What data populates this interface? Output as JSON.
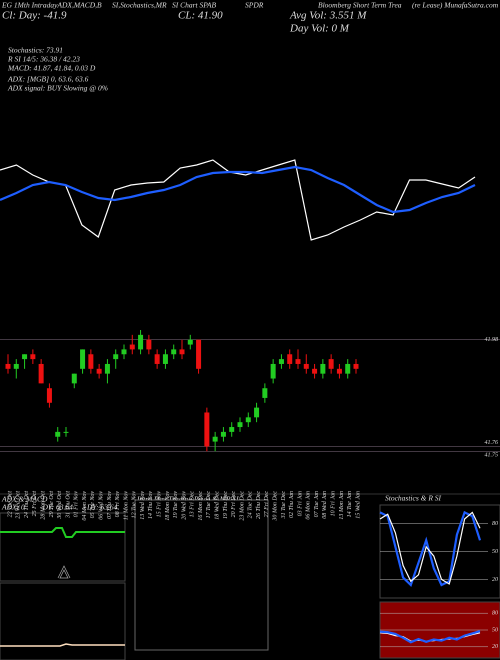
{
  "header": [
    "EG 1Mth IntradayADX,MACD,B",
    "SI,Stochastics,MR",
    "SI Chart SPAB",
    "SPDR",
    "Bloomberg Short Term Trea",
    "(re Lease) MunafaSutra.com",
    "Cl: Day: -41.9",
    "CL: 41.90",
    "Avg Vol: 3.551  M",
    "Day Vol: 0  M",
    "Stochastics: 73.91",
    "R SI 14/5: 36.38 / 42.23",
    "MACD: 41.87, 41.84, 0.03 D",
    "ADX: [MGB] 0, 63.6, 63.6",
    "ADX signal: BUY Slowing @ 0%",
    "ADX & MACD",
    "ADX: 0",
    "-DY: 63.64",
    "+DY: 63.64",
    "Intra Day Trading Price & MR SI"
  ],
  "chart_data": [
    {
      "type": "candlestick",
      "categories": [
        "22 Tue Oct",
        "23 Wed Oct",
        "24 Thu Oct",
        "25 Fri Oct",
        "28 Mon Oct",
        "29 Tue Oct",
        "30 Wed Oct",
        "31 Thu Oct",
        "01 Fri Nov",
        "04 Mon Nov",
        "05 Tue Nov",
        "06 Wed Nov",
        "07 Thu Nov",
        "08 Fri Nov",
        "11 Mon Nov",
        "12 Tue Nov",
        "13 Wed Nov",
        "14 Thu Nov",
        "15 Fri Nov",
        "18 Mon Nov",
        "19 Tue Nov",
        "20 Wed Nov",
        "13 Fri Dec",
        "16 Mon Dec",
        "17 Tue Dec",
        "18 Wed Dec",
        "19 Thu Dec",
        "20 Fri Dec",
        "23 Mon Dec",
        "24 Tue Dec",
        "26 Thu Dec",
        "27 Fri Dec",
        "30 Mon Dec",
        "31 Tue Dec",
        "02 Thu Jan",
        "03 Fri Jan",
        "06 Mon Jan",
        "07 Tue Jan",
        "08 Wed Jan",
        "10 Fri Jan",
        "13 Mon Jan",
        "14 Tue Jan",
        "15 Wed Jan"
      ],
      "open": [
        41.93,
        41.92,
        41.94,
        41.95,
        41.93,
        41.88,
        41.78,
        41.79,
        41.89,
        41.92,
        41.95,
        41.92,
        41.91,
        41.94,
        41.95,
        41.97,
        41.96,
        41.98,
        41.95,
        41.93,
        41.95,
        41.96,
        41.97,
        41.98,
        41.83,
        41.77,
        41.78,
        41.79,
        41.8,
        41.81,
        41.82,
        41.86,
        41.9,
        41.93,
        41.95,
        41.94,
        41.93,
        41.92,
        41.91,
        41.94,
        41.92,
        41.91,
        41.93
      ],
      "high": [
        41.95,
        41.94,
        41.95,
        41.96,
        41.94,
        41.89,
        41.8,
        41.8,
        41.91,
        41.96,
        41.96,
        41.93,
        41.94,
        41.96,
        41.97,
        41.99,
        42.0,
        41.99,
        41.96,
        41.96,
        41.97,
        41.98,
        41.99,
        41.98,
        41.84,
        41.79,
        41.8,
        41.81,
        41.82,
        41.83,
        41.85,
        41.89,
        41.94,
        41.95,
        41.96,
        41.96,
        41.95,
        41.93,
        41.94,
        41.95,
        41.93,
        41.94,
        41.94
      ],
      "low": [
        41.91,
        41.9,
        41.92,
        41.93,
        41.89,
        41.84,
        41.77,
        41.78,
        41.88,
        41.91,
        41.91,
        41.9,
        41.89,
        41.92,
        41.94,
        41.95,
        41.95,
        41.95,
        41.92,
        41.92,
        41.94,
        41.94,
        41.96,
        41.91,
        41.75,
        41.75,
        41.77,
        41.78,
        41.79,
        41.8,
        41.81,
        41.85,
        41.89,
        41.92,
        41.92,
        41.92,
        41.91,
        41.9,
        41.9,
        41.91,
        41.9,
        41.9,
        41.91
      ],
      "close": [
        41.92,
        41.93,
        41.95,
        41.94,
        41.89,
        41.85,
        41.79,
        41.79,
        41.91,
        41.96,
        41.92,
        41.91,
        41.93,
        41.95,
        41.96,
        41.96,
        41.99,
        41.96,
        41.93,
        41.95,
        41.96,
        41.95,
        41.98,
        41.92,
        41.76,
        41.78,
        41.79,
        41.8,
        41.81,
        41.82,
        41.84,
        41.88,
        41.93,
        41.94,
        41.93,
        41.93,
        41.92,
        41.91,
        41.93,
        41.92,
        41.91,
        41.93,
        41.92
      ],
      "up_color": "#22cc22",
      "down_color": "#ee1111",
      "ylim": [
        41.73,
        42.0
      ],
      "yticks": [
        41.98,
        41.76,
        41.75
      ]
    },
    {
      "type": "line",
      "series": [
        {
          "color": "#ffffff",
          "values": [
            80,
            85,
            75,
            68,
            65,
            25,
            13,
            60,
            65,
            67,
            68,
            82,
            85,
            90,
            78,
            75,
            80,
            85,
            90,
            10,
            15,
            23,
            30,
            38,
            35,
            70,
            70,
            66,
            62,
            73
          ]
        },
        {
          "color": "#1e5eff",
          "values": [
            50,
            57,
            65,
            68,
            65,
            58,
            52,
            50,
            53,
            57,
            60,
            65,
            73,
            77,
            78,
            78,
            77,
            80,
            83,
            80,
            72,
            65,
            55,
            45,
            38,
            40,
            47,
            53,
            57,
            65
          ]
        }
      ],
      "ylim": [
        0,
        110
      ]
    },
    {
      "type": "line",
      "title": "Stochastics & R SI",
      "series": [
        {
          "color": "#1e5eff",
          "values": [
            92,
            88,
            55,
            22,
            14,
            38,
            62,
            32,
            14,
            18,
            68,
            92,
            88,
            62
          ]
        },
        {
          "color": "#ffffff",
          "values": [
            85,
            90,
            70,
            35,
            18,
            25,
            55,
            45,
            20,
            15,
            45,
            85,
            92,
            75
          ]
        }
      ],
      "ylim": [
        0,
        100
      ],
      "yticks": [
        80,
        50,
        20
      ],
      "background": "#000000"
    },
    {
      "type": "line",
      "series": [
        {
          "color": "#ffffff",
          "values": [
            45,
            44,
            40,
            38,
            30,
            32,
            30,
            31,
            33,
            34,
            35,
            38,
            42,
            45
          ]
        },
        {
          "color": "#1e5eff",
          "values": [
            47,
            46,
            43,
            36,
            28,
            34,
            29,
            33,
            31,
            36,
            33,
            40,
            44,
            48
          ]
        }
      ],
      "ylim": [
        0,
        100
      ],
      "yticks": [
        80,
        50,
        20
      ],
      "background": "#8b0000"
    }
  ]
}
